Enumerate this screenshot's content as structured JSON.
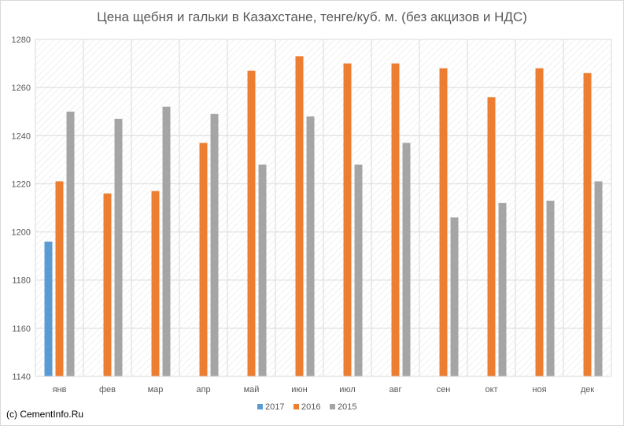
{
  "chart_data": {
    "type": "bar",
    "title": "Цена щебня и гальки в Казахстане, тенге/куб. м. (без акцизов и НДС)",
    "categories": [
      "янв",
      "фев",
      "мар",
      "апр",
      "май",
      "июн",
      "июл",
      "авг",
      "сен",
      "окт",
      "ноя",
      "дек"
    ],
    "ylim": [
      1140,
      1280
    ],
    "yticks": [
      1140,
      1160,
      1180,
      1200,
      1220,
      1240,
      1260,
      1280
    ],
    "grid": true,
    "legend_position": "bottom",
    "series": [
      {
        "name": "2017",
        "color": "#5b9bd5",
        "values": [
          1196,
          null,
          null,
          null,
          null,
          null,
          null,
          null,
          null,
          null,
          null,
          null
        ]
      },
      {
        "name": "2016",
        "color": "#ed7d31",
        "values": [
          1221,
          1216,
          1217,
          1237,
          1267,
          1273,
          1270,
          1270,
          1268,
          1256,
          1268,
          1266
        ]
      },
      {
        "name": "2015",
        "color": "#a5a5a5",
        "values": [
          1250,
          1247,
          1252,
          1249,
          1228,
          1248,
          1228,
          1237,
          1206,
          1212,
          1213,
          1221
        ]
      }
    ]
  },
  "footer": {
    "watermark": "(c) CementInfo.Ru"
  }
}
